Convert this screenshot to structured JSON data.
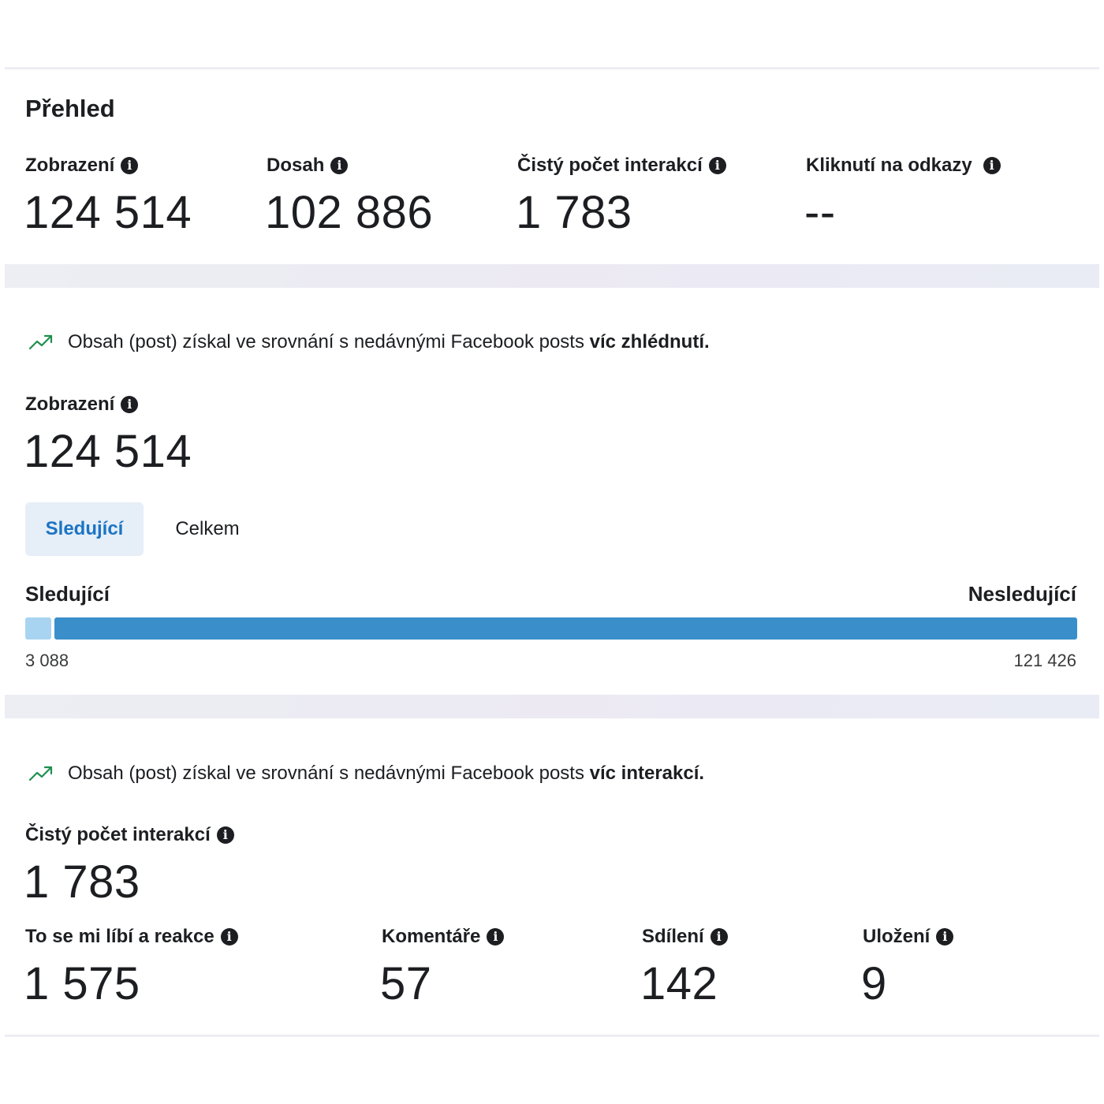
{
  "overview": {
    "title": "Přehled",
    "metrics": [
      {
        "label": "Zobrazení",
        "value": "124 514"
      },
      {
        "label": "Dosah",
        "value": "102 886"
      },
      {
        "label": "Čistý počet interakcí",
        "value": "1 783"
      },
      {
        "label": "Kliknutí na odkazy",
        "value": "--"
      }
    ]
  },
  "views": {
    "insight_prefix": "Obsah (post) získal ve srovnání s nedávnými Facebook posts ",
    "insight_bold": "víc zhlédnutí.",
    "label": "Zobrazení",
    "value": "124 514",
    "tabs": {
      "active": "Sledující",
      "inactive": "Celkem"
    },
    "bar": {
      "left_label": "Sledující",
      "right_label": "Nesledující",
      "followers": 3088,
      "non_followers": 121426,
      "followers_text": "3 088",
      "non_followers_text": "121 426",
      "followers_color": "#a8d4f2",
      "non_followers_color": "#3a8fcb"
    }
  },
  "interactions": {
    "insight_prefix": "Obsah (post) získal ve srovnání s nedávnými Facebook posts ",
    "insight_bold": "víc interakcí.",
    "label": "Čistý počet interakcí",
    "value": "1 783",
    "metrics": [
      {
        "label": "To se mi líbí a reakce",
        "value": "1 575"
      },
      {
        "label": "Komentáře",
        "value": "57"
      },
      {
        "label": "Sdílení",
        "value": "142"
      },
      {
        "label": "Uložení",
        "value": "9"
      }
    ]
  },
  "colors": {
    "trend_icon": "#1e8f4e",
    "accent": "#1b74c4"
  },
  "icons": {
    "info": "info-icon",
    "trend": "trending-up-icon"
  }
}
